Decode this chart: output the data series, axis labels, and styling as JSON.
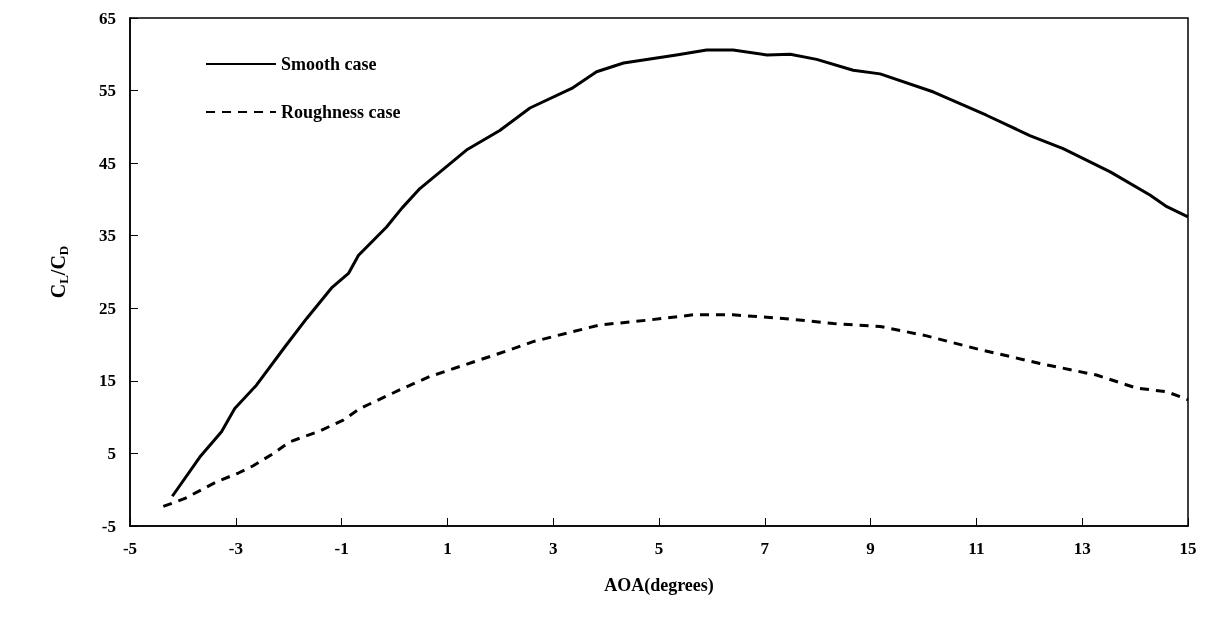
{
  "chart_data": {
    "type": "line",
    "xlabel": "AOA(degrees)",
    "ylabel": "C$_{L}$/C$_{D}$",
    "xlim": [
      -5,
      15
    ],
    "xticks": [
      -5,
      -3,
      -1,
      1,
      3,
      5,
      7,
      9,
      11,
      13,
      15
    ],
    "ylim": [
      -5,
      65
    ],
    "yticks": [
      -5,
      5,
      15,
      25,
      35,
      45,
      55,
      65
    ],
    "grid": false,
    "legend": "top left",
    "marker": "none",
    "series": [
      {
        "name": "Smooth case",
        "color": "#000000",
        "line_style": "solid",
        "x": [
          -4.2,
          -3.68,
          -3.27,
          -3.02,
          -2.61,
          -2.07,
          -1.66,
          -1.19,
          -0.87,
          -0.68,
          -0.15,
          0.14,
          0.48,
          1.36,
          1.99,
          2.56,
          3.35,
          3.82,
          4.33,
          5.33,
          5.9,
          6.4,
          7.04,
          7.48,
          7.98,
          8.67,
          9.18,
          10.19,
          11.19,
          12.01,
          12.64,
          13.53,
          14.28,
          14.6,
          15.0
        ],
        "values": [
          -0.9,
          4.5,
          8.0,
          11.2,
          14.4,
          19.7,
          23.6,
          27.8,
          29.8,
          32.3,
          36.2,
          38.8,
          41.5,
          46.8,
          49.5,
          52.6,
          55.3,
          57.6,
          58.8,
          59.9,
          60.6,
          60.6,
          59.9,
          60.0,
          59.3,
          57.8,
          57.3,
          54.8,
          51.6,
          48.8,
          47.0,
          43.8,
          40.6,
          39.0,
          37.6
        ]
      },
      {
        "name": "Roughness case",
        "color": "#000000",
        "line_style": "dashed",
        "x": [
          -4.37,
          -3.96,
          -3.36,
          -2.95,
          -2.67,
          -2.29,
          -1.98,
          -1.41,
          -0.97,
          -0.65,
          0.17,
          0.67,
          1.49,
          1.99,
          2.62,
          3.38,
          3.88,
          4.83,
          5.65,
          6.4,
          7.35,
          8.3,
          9.18,
          10.06,
          11.07,
          12.2,
          13.27,
          14.03,
          14.6,
          15.0
        ],
        "values": [
          -2.3,
          -1.2,
          1.1,
          2.3,
          3.3,
          5.0,
          6.6,
          8.1,
          9.6,
          11.2,
          14.0,
          15.6,
          17.6,
          18.8,
          20.4,
          21.8,
          22.7,
          23.4,
          24.1,
          24.1,
          23.6,
          22.9,
          22.5,
          21.2,
          19.3,
          17.4,
          15.8,
          14.0,
          13.5,
          12.4
        ]
      }
    ]
  }
}
